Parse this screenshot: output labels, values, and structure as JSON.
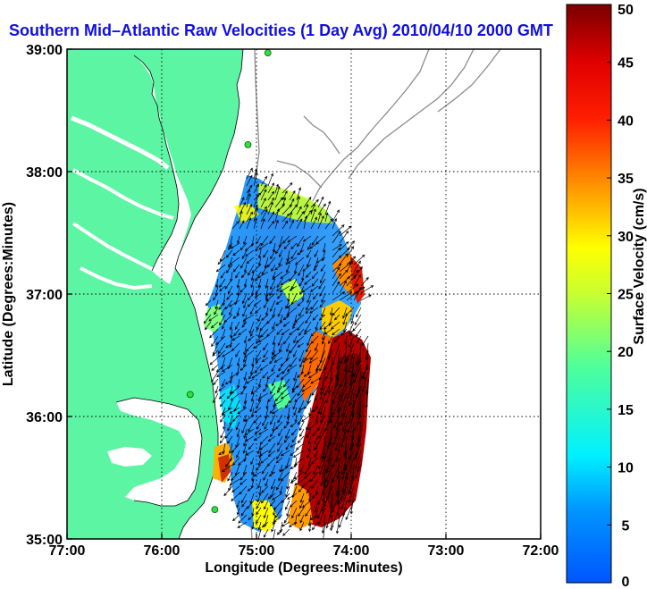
{
  "title": "Southern Mid–Atlantic Raw Velocities (1 Day Avg) 2010/04/10 2000 GMT",
  "map": {
    "xlabel": "Longitude (Degrees:Minutes)",
    "ylabel": "Latitude (Degrees:Minutes)",
    "x_ticks": [
      "77:00",
      "76:00",
      "75:00",
      "74:00",
      "73:00",
      "72:00"
    ],
    "y_ticks": [
      "39:00",
      "38:00",
      "37:00",
      "36:00",
      "35:00"
    ],
    "lon_range": [
      -77,
      -72
    ],
    "lat_range": [
      35,
      39
    ],
    "grid": "dotted",
    "land_color": "#5cf5a4",
    "stations": [
      {
        "lon": -74.88,
        "lat": 38.97
      },
      {
        "lon": -75.09,
        "lat": 38.22
      },
      {
        "lon": -75.7,
        "lat": 36.18
      },
      {
        "lon": -75.44,
        "lat": 35.24
      }
    ]
  },
  "colorbar": {
    "label": "Surface Velocity (cm/s)",
    "ticks": [
      "50",
      "45",
      "40",
      "35",
      "30",
      "25",
      "20",
      "15",
      "10",
      "5",
      "0"
    ],
    "range": [
      0,
      50
    ],
    "colormap": "jet"
  }
}
